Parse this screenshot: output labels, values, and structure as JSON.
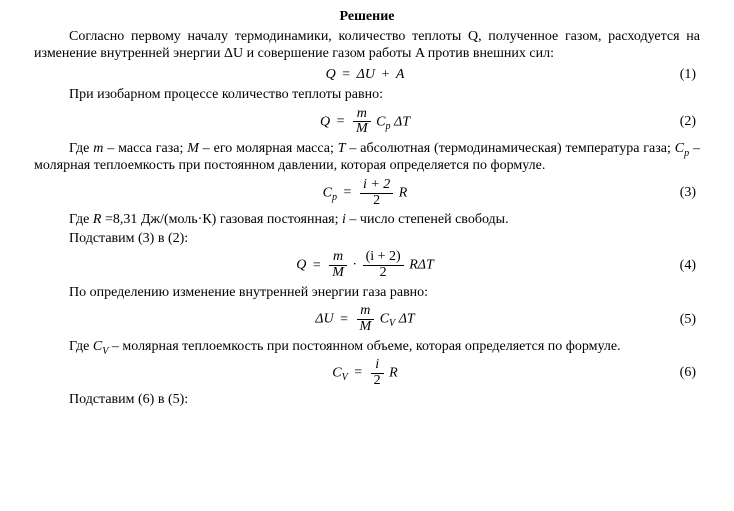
{
  "title": "Решение",
  "para1": "Согласно первому началу термодинамики, количество теплоты Q, полученное газом, расходуется на изменение внутренней энергии ΔU и совершение газом работы A против внешних сил:",
  "eq1": {
    "lhs": "Q",
    "op": "=",
    "rhs_a": "ΔU",
    "plus": "+",
    "rhs_b": "A",
    "num": "(1)"
  },
  "para2": "При изобарном процессе количество теплоты равно:",
  "eq2": {
    "lhs": "Q",
    "op": "=",
    "frac_num": "m",
    "frac_den": "M",
    "factor_a": "C",
    "factor_a_sub": "p",
    "factor_b": "ΔT",
    "num": "(2)"
  },
  "para3_a": "Где ",
  "para3_m": "m",
  "para3_b": " – масса газа; ",
  "para3_M": "M",
  "para3_c": " – его молярная масса; ",
  "para3_T": "T",
  "para3_d": " – абсолютная (термодинамическая) температура газа; ",
  "para3_Cp": "C",
  "para3_Cp_sub": "p",
  "para3_e": " – молярная теплоемкость при постоянном давлении, которая определяется по формуле.",
  "eq3": {
    "lhs_a": "C",
    "lhs_sub": "p",
    "op": "=",
    "frac_num": "i + 2",
    "frac_den": "2",
    "factor": "R",
    "num": "(3)"
  },
  "para4_a": "Где ",
  "para4_R": "R",
  "para4_b": " =8,31 Дж/(моль·К) газовая постоянная;  ",
  "para4_i": "i",
  "para4_c": " – число степеней свободы.",
  "para5": "Подставим (3) в (2):",
  "eq4": {
    "lhs": "Q",
    "op": "=",
    "f1_num": "m",
    "f1_den": "M",
    "dot": "·",
    "f2_num": "(i + 2)",
    "f2_den": "2",
    "factor_a": "R",
    "factor_b": "ΔT",
    "num": "(4)"
  },
  "para6": "По определению изменение внутренней энергии газа равно:",
  "eq5": {
    "lhs": "ΔU",
    "op": "=",
    "frac_num": "m",
    "frac_den": "M",
    "factor_a": "C",
    "factor_a_sub": "V",
    "factor_b": "ΔT",
    "num": "(5)"
  },
  "para7_a": "Где ",
  "para7_Cv": "C",
  "para7_Cv_sub": "V",
  "para7_b": " – молярная теплоемкость при постоянном объеме, которая определяется по формуле.",
  "eq6": {
    "lhs_a": "C",
    "lhs_sub": "V",
    "op": "=",
    "frac_num": "i",
    "frac_den": "2",
    "factor": "R",
    "num": "(6)"
  },
  "para8": "Подставим (6) в (5):"
}
